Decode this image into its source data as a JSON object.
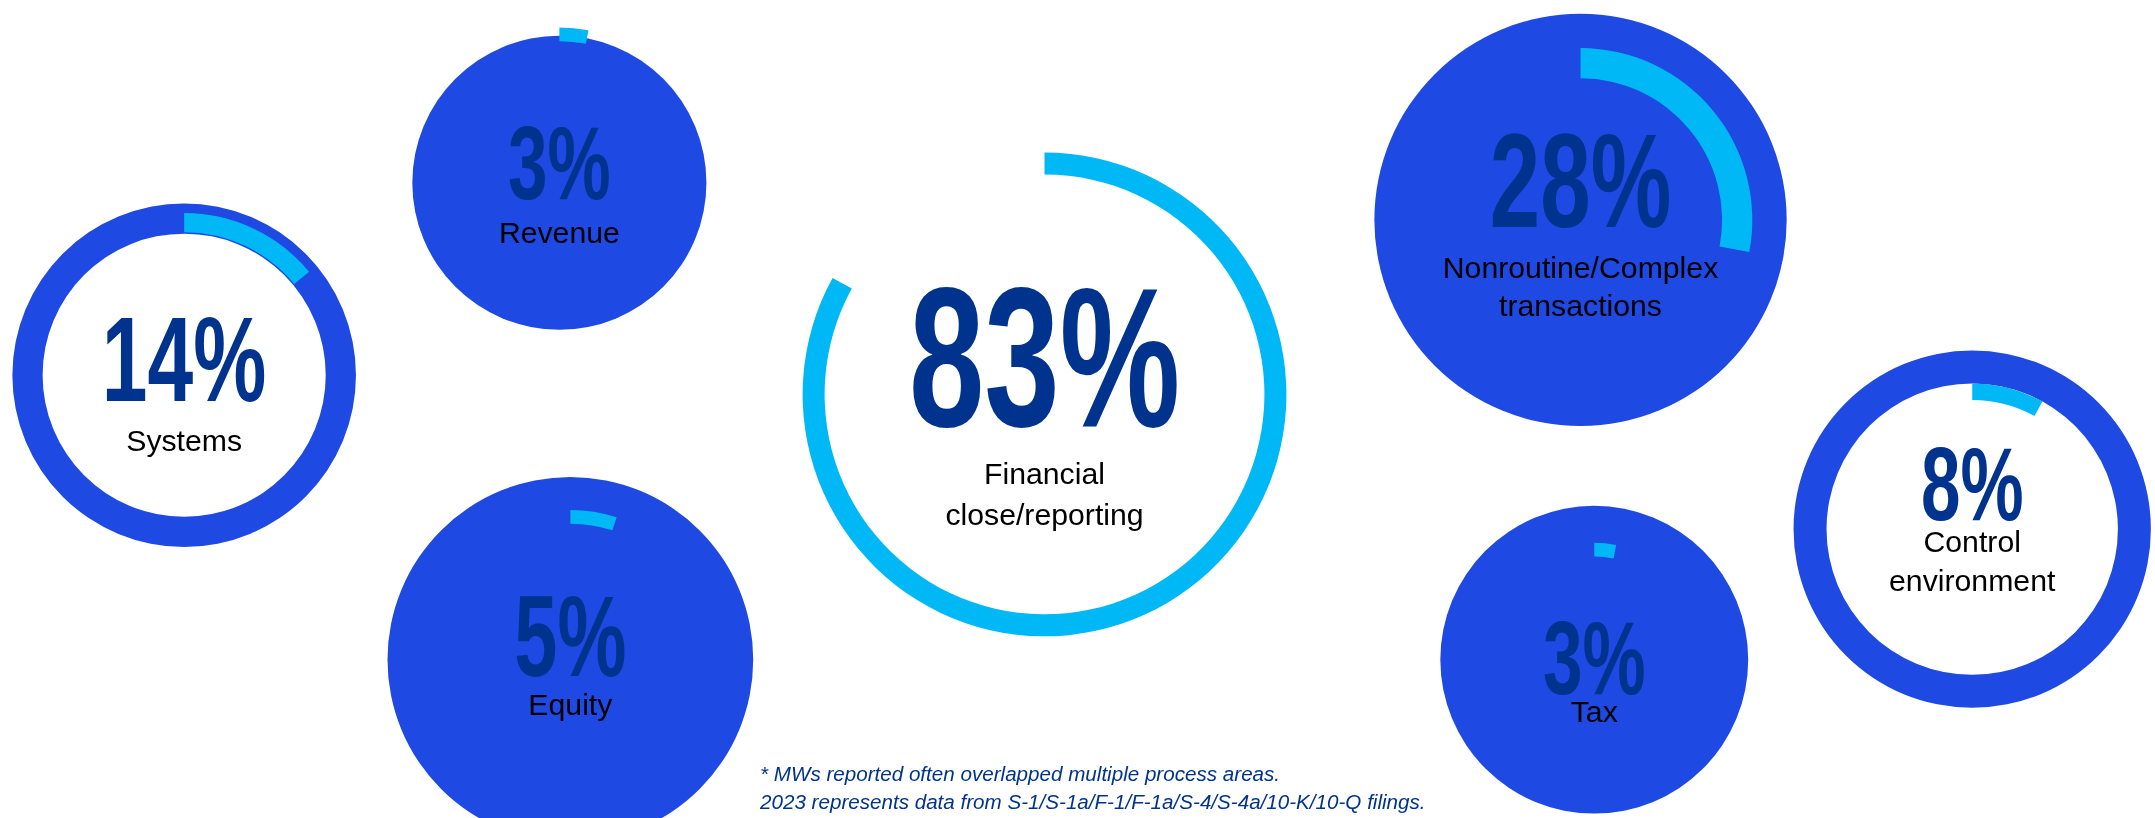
{
  "chart_data": {
    "type": "other",
    "categories": [
      "Systems",
      "Revenue",
      "Equity",
      "Financial close/reporting",
      "Nonroutine/Complex transactions",
      "Tax",
      "Control environment"
    ],
    "values": [
      14,
      3,
      5,
      83,
      28,
      3,
      8
    ],
    "value_labels": [
      "14%",
      "3%",
      "5%",
      "83%",
      "28%",
      "3%",
      "8%"
    ],
    "annotations": [
      "* MWs reported often overlapped multiple process areas.",
      "2023 represents data from S-1/S-1a/F-1/F-1a/S-4/S-4a/10-K/10-Q filings."
    ]
  }
}
